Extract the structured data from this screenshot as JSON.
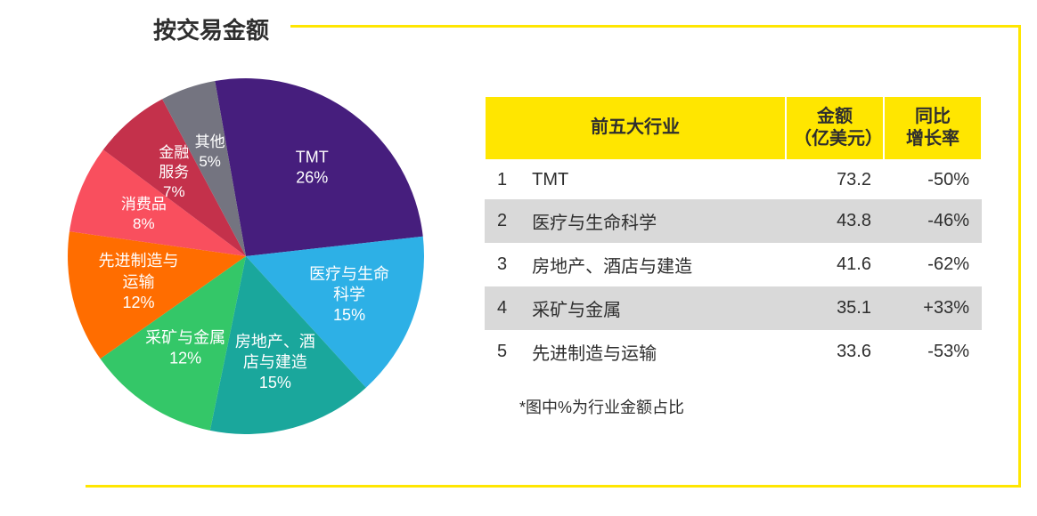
{
  "title": "按交易金额",
  "pie": {
    "type": "pie",
    "background_color": "#ffffff",
    "radius": 200,
    "start_angle_deg": 10,
    "label_fontsize": 18,
    "label_color": "#ffffff",
    "slices": [
      {
        "name": "TMT",
        "percent": 26,
        "color": "#461e7d",
        "label": "TMT",
        "sub": "26%"
      },
      {
        "name": "医疗与生命科学",
        "percent": 15,
        "color": "#2db0e6",
        "label": "医疗与生命\n科学",
        "sub": "15%"
      },
      {
        "name": "房地产、酒店与建造",
        "percent": 15,
        "color": "#1aa79c",
        "label": "房地产、酒\n店与建造",
        "sub": "15%"
      },
      {
        "name": "采矿与金属",
        "percent": 12,
        "color": "#34c768",
        "label": "采矿与金属",
        "sub": "12%"
      },
      {
        "name": "先进制造与运输",
        "percent": 12,
        "color": "#ff6d00",
        "label": "先进制造与\n运输",
        "sub": "12%"
      },
      {
        "name": "消费品",
        "percent": 8,
        "color": "#f94f5e",
        "label": "消费品",
        "sub": "8%"
      },
      {
        "name": "金融服务",
        "percent": 7,
        "color": "#c4314b",
        "label": "金融\n服务",
        "sub": "7%"
      },
      {
        "name": "其他",
        "percent": 5,
        "color": "#747480",
        "label": "其他",
        "sub": "5%"
      }
    ]
  },
  "table": {
    "header_bg": "#ffe600",
    "alt_row_bg": "#d9d9d9",
    "neg_color": "#e3002b",
    "pos_color": "#00a651",
    "text_color": "#2e2e2e",
    "fontsize": 20,
    "columns": [
      {
        "key": "industry",
        "label": "前五大行业"
      },
      {
        "key": "amount",
        "label": "金额\n（亿美元）"
      },
      {
        "key": "rate",
        "label": "同比\n增长率"
      }
    ],
    "rows": [
      {
        "idx": "1",
        "industry": "TMT",
        "amount": "73.2",
        "rate": "-50%",
        "rate_sign": "neg"
      },
      {
        "idx": "2",
        "industry": "医疗与生命科学",
        "amount": "43.8",
        "rate": "-46%",
        "rate_sign": "neg"
      },
      {
        "idx": "3",
        "industry": "房地产、酒店与建造",
        "amount": "41.6",
        "rate": "-62%",
        "rate_sign": "neg"
      },
      {
        "idx": "4",
        "industry": "采矿与金属",
        "amount": "35.1",
        "rate": "+33%",
        "rate_sign": "pos"
      },
      {
        "idx": "5",
        "industry": "先进制造与运输",
        "amount": "33.6",
        "rate": "-53%",
        "rate_sign": "neg"
      }
    ]
  },
  "footnote": "*图中%为行业金额占比",
  "frame_border_color": "#ffe600"
}
